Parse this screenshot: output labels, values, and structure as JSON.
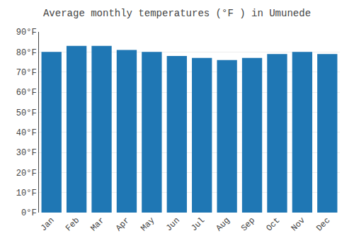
{
  "chart_data": {
    "type": "bar",
    "title": "Average monthly temperatures (°F ) in Umunede",
    "categories": [
      "Jan",
      "Feb",
      "Mar",
      "Apr",
      "May",
      "Jun",
      "Jul",
      "Aug",
      "Sep",
      "Oct",
      "Nov",
      "Dec"
    ],
    "values": [
      80,
      83,
      83,
      81,
      80,
      78,
      77,
      76,
      77,
      79,
      80,
      79
    ],
    "ylim": [
      0,
      90
    ],
    "yticks": [
      {
        "value": 0,
        "label": "0°F"
      },
      {
        "value": 10,
        "label": "10°F"
      },
      {
        "value": 20,
        "label": "20°F"
      },
      {
        "value": 30,
        "label": "30°F"
      },
      {
        "value": 40,
        "label": "40°F"
      },
      {
        "value": 50,
        "label": "50°F"
      },
      {
        "value": 60,
        "label": "60°F"
      },
      {
        "value": 70,
        "label": "70°F"
      },
      {
        "value": 80,
        "label": "80°F"
      },
      {
        "value": 90,
        "label": "90°F"
      }
    ],
    "grid": true
  }
}
